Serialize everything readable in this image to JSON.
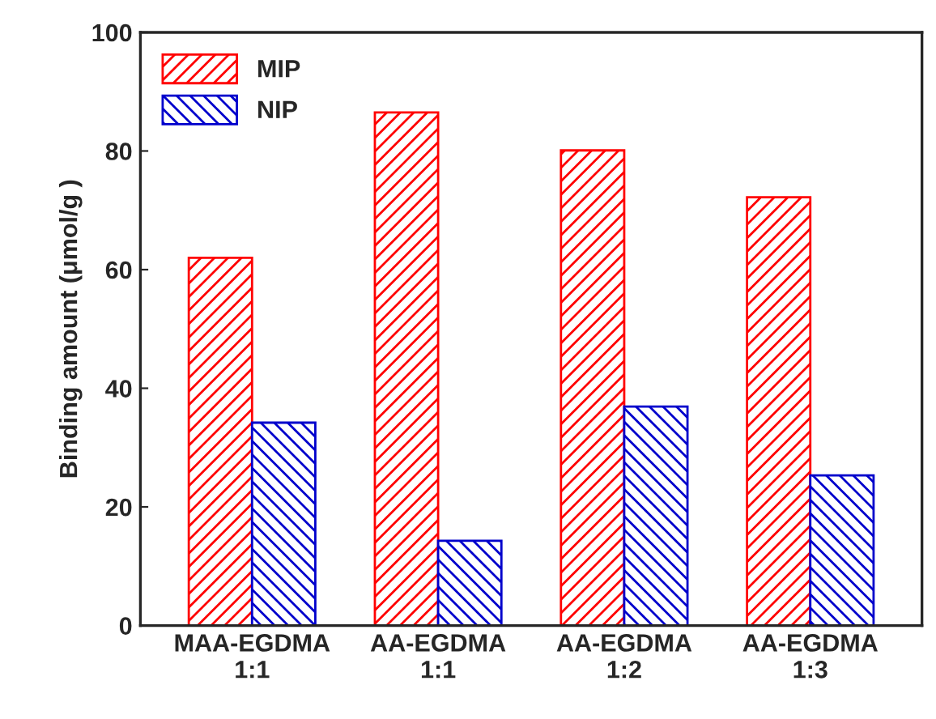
{
  "chart_data": {
    "type": "bar",
    "ylabel": "Binding amount (μmol/g )",
    "categories": [
      "MAA-EGDMA\n1:1",
      "AA-EGDMA\n1:1",
      "AA-EGDMA\n1:2",
      "AA-EGDMA\n1:3"
    ],
    "series": [
      {
        "name": "MIP",
        "color": "#ff0000",
        "values": [
          62.0,
          86.5,
          80.1,
          72.2
        ]
      },
      {
        "name": "NIP",
        "color": "#0000cc",
        "values": [
          34.2,
          14.3,
          36.9,
          25.3
        ]
      }
    ],
    "ylim": [
      0,
      100
    ],
    "yticks": [
      0,
      20,
      40,
      60,
      80,
      100
    ],
    "legend": "top left",
    "grid": false
  }
}
